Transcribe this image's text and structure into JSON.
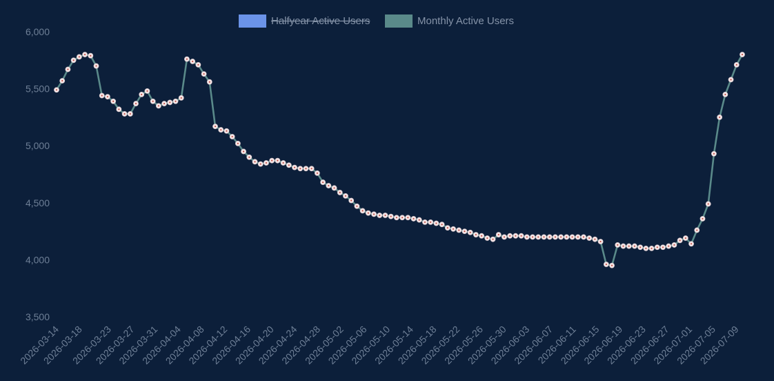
{
  "colors": {
    "background": "#0c1f3a",
    "halfyear": "#6b93e8",
    "monthly": "#5a8a8a",
    "point_fill": "#f2e4e6",
    "point_center": "#c0392b",
    "text": "#6e7f96"
  },
  "chart_data": {
    "type": "line",
    "title": "",
    "xlabel": "",
    "ylabel": "",
    "ylim": [
      3500,
      6000
    ],
    "y_ticks": [
      3500,
      4000,
      4500,
      5000,
      5500,
      6000
    ],
    "y_tick_labels": [
      "3,500",
      "4,000",
      "4,500",
      "5,000",
      "5,500",
      "6,000"
    ],
    "legend_position": "top-center",
    "grid": false,
    "x_tick_labels": [
      "2026-03-14",
      "2026-03-18",
      "2026-03-23",
      "2026-03-27",
      "2026-03-31",
      "2026-04-04",
      "2026-04-08",
      "2026-04-12",
      "2026-04-16",
      "2026-04-20",
      "2026-04-24",
      "2026-04-28",
      "2026-05-02",
      "2026-05-06",
      "2026-05-10",
      "2026-05-14",
      "2026-05-18",
      "2026-05-22",
      "2026-05-26",
      "2026-05-30",
      "2026-06-03",
      "2026-06-07",
      "2026-06-11",
      "2026-06-15",
      "2026-06-19",
      "2026-06-23",
      "2026-06-27",
      "2026-07-01",
      "2026-07-05",
      "2026-07-09"
    ],
    "x_start_date": "2026-03-14",
    "x_end_date": "2026-07-10",
    "series": [
      {
        "name": "Halfyear Active Users",
        "hidden": true,
        "values": []
      },
      {
        "name": "Monthly Active Users",
        "hidden": false,
        "values": [
          5490,
          5570,
          5670,
          5750,
          5780,
          5800,
          5790,
          5700,
          5440,
          5430,
          5390,
          5320,
          5280,
          5280,
          5370,
          5450,
          5480,
          5390,
          5350,
          5370,
          5380,
          5390,
          5420,
          5760,
          5740,
          5710,
          5630,
          5560,
          5170,
          5140,
          5130,
          5080,
          5020,
          4950,
          4900,
          4860,
          4840,
          4850,
          4870,
          4870,
          4850,
          4830,
          4810,
          4800,
          4800,
          4800,
          4760,
          4680,
          4650,
          4630,
          4590,
          4560,
          4520,
          4470,
          4430,
          4410,
          4400,
          4390,
          4390,
          4380,
          4370,
          4370,
          4370,
          4360,
          4350,
          4330,
          4330,
          4320,
          4310,
          4280,
          4270,
          4260,
          4250,
          4240,
          4220,
          4210,
          4190,
          4180,
          4220,
          4200,
          4210,
          4210,
          4210,
          4200,
          4200,
          4200,
          4200,
          4200,
          4200,
          4200,
          4200,
          4200,
          4200,
          4200,
          4190,
          4180,
          4160,
          3960,
          3950,
          4130,
          4120,
          4120,
          4120,
          4110,
          4100,
          4100,
          4110,
          4110,
          4120,
          4130,
          4170,
          4190,
          4140,
          4260,
          4360,
          4490,
          4930,
          5250,
          5450,
          5580,
          5710,
          5800
        ]
      }
    ]
  }
}
